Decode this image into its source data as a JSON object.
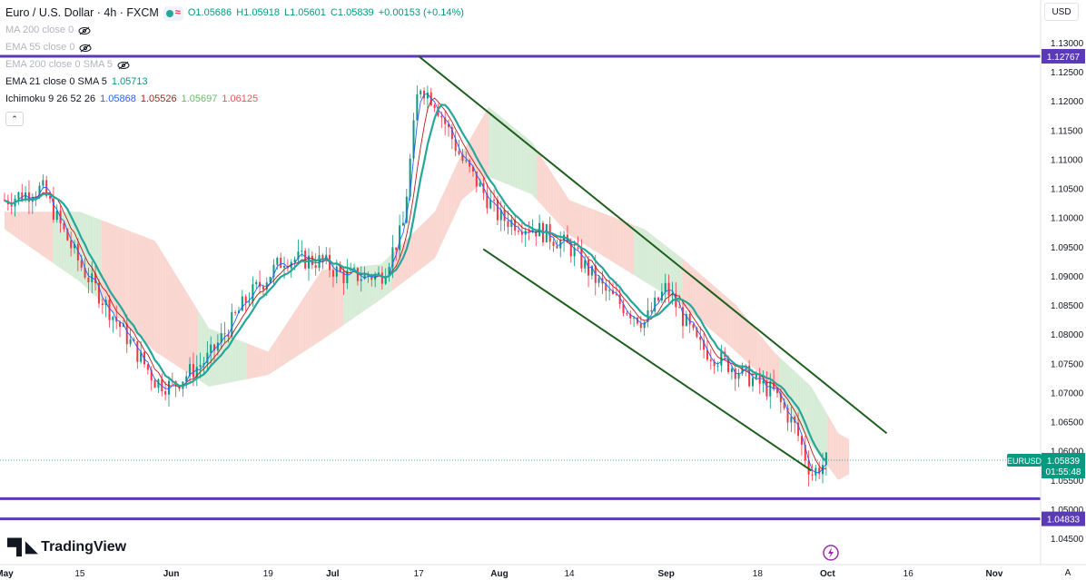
{
  "header": {
    "symbol_title": "Euro / U.S. Dollar · 4h · FXCM",
    "open": "O1.05686",
    "high": "H1.05918",
    "low": "L1.05601",
    "close": "C1.05839",
    "change": "+0.00153 (+0.14%)"
  },
  "indicators": [
    {
      "label": "MA 200 close 0",
      "value": ""
    },
    {
      "label": "EMA 55 close 0",
      "value": ""
    },
    {
      "label": "EMA 200 close 0 SMA 5",
      "value": ""
    },
    {
      "label": "EMA 21 close 0 SMA 5",
      "value": "1.05713"
    }
  ],
  "ichimoku": {
    "label": "Ichimoku 9 26 52 26",
    "v1": "1.05868",
    "v2": "1.05526",
    "v3": "1.05697",
    "v4": "1.06125"
  },
  "currency_button": "USD",
  "logo_text": "TradingView",
  "colors": {
    "up": "#089981",
    "down": "#f23645",
    "ema21": "#26a69a",
    "trend_line": "#1e5f1e",
    "hline": "#5b3ab8",
    "cloud_red": "#f8c8c0",
    "cloud_green": "#c8e6c9",
    "tenkan": "#2962ff",
    "kijun": "#b71c1c"
  },
  "chart_data": {
    "type": "candlestick",
    "title": "Euro / U.S. Dollar · 4h · FXCM",
    "y_ticks": [
      "1.13000",
      "1.12500",
      "1.12000",
      "1.11500",
      "1.11000",
      "1.10500",
      "1.10000",
      "1.09500",
      "1.09000",
      "1.08500",
      "1.08000",
      "1.07500",
      "1.07000",
      "1.06500",
      "1.06000",
      "1.05500",
      "1.05000",
      "1.04500"
    ],
    "y_range": [
      1.0425,
      1.1325
    ],
    "x_ticks": [
      "May",
      "15",
      "Jun",
      "19",
      "Jul",
      "17",
      "Aug",
      "14",
      "Sep",
      "18",
      "Oct",
      "16",
      "Nov"
    ],
    "price_path": [
      [
        "May 1",
        1.103
      ],
      [
        "May 8",
        1.105
      ],
      [
        "May 15",
        1.092
      ],
      [
        "May 22",
        1.082
      ],
      [
        "May 29",
        1.072
      ],
      [
        "Jun 1",
        1.071
      ],
      [
        "Jun 8",
        1.076
      ],
      [
        "Jun 15",
        1.086
      ],
      [
        "Jun 22",
        1.093
      ],
      [
        "Jun 29",
        1.0925
      ],
      [
        "Jul 3",
        1.09
      ],
      [
        "Jul 10",
        1.09
      ],
      [
        "Jul 14",
        1.098
      ],
      [
        "Jul 17",
        1.123
      ],
      [
        "Jul 20",
        1.12
      ],
      [
        "Jul 25",
        1.11
      ],
      [
        "Aug 1",
        1.1
      ],
      [
        "Aug 8",
        1.098
      ],
      [
        "Aug 14",
        1.095
      ],
      [
        "Aug 21",
        1.087
      ],
      [
        "Aug 28",
        1.082
      ],
      [
        "Sep 1",
        1.088
      ],
      [
        "Sep 7",
        1.078
      ],
      [
        "Sep 14",
        1.074
      ],
      [
        "Sep 21",
        1.07
      ],
      [
        "Sep 25",
        1.064
      ],
      [
        "Sep 28",
        1.056
      ],
      [
        "Oct 1",
        1.0584
      ]
    ],
    "cloud_path": [
      [
        "May 1",
        1.1,
        1.099
      ],
      [
        "May 15",
        1.1,
        1.09
      ],
      [
        "May 29",
        1.095,
        1.078
      ],
      [
        "Jun 8",
        1.08,
        1.072
      ],
      [
        "Jun 19",
        1.076,
        1.074
      ],
      [
        "Jun 29",
        1.09,
        1.08
      ],
      [
        "Jul 10",
        1.091,
        1.087
      ],
      [
        "Jul 20",
        1.1,
        1.094
      ],
      [
        "Jul 25",
        1.11,
        1.104
      ],
      [
        "Jul 30",
        1.118,
        1.108
      ],
      [
        "Aug 7",
        1.112,
        1.105
      ],
      [
        "Aug 14",
        1.102,
        1.098
      ],
      [
        "Aug 28",
        1.097,
        1.09
      ],
      [
        "Sep 4",
        1.092,
        1.086
      ],
      [
        "Sep 14",
        1.084,
        1.078
      ],
      [
        "Sep 21",
        1.076,
        1.072
      ],
      [
        "Sep 28",
        1.07,
        1.062
      ],
      [
        "Oct 3",
        1.062,
        1.056
      ],
      [
        "Oct 5",
        1.061,
        1.057
      ]
    ],
    "hlines": [
      {
        "value": 1.12767,
        "label": "1.12767",
        "highlighted": true
      },
      {
        "value": 1.0518,
        "label": "",
        "highlighted": false
      },
      {
        "value": 1.04833,
        "label": "1.04833",
        "highlighted": true
      }
    ],
    "channel_upper": [
      [
        "Jul 17",
        1.12767
      ],
      [
        "Oct 12",
        1.063
      ]
    ],
    "channel_lower": [
      [
        "Jul 29",
        1.0946
      ],
      [
        "Sep 28",
        1.0566
      ]
    ],
    "last_price": {
      "symbol": "EURUSD",
      "price": "1.05839",
      "countdown": "01:55:48",
      "value": 1.05839
    }
  }
}
